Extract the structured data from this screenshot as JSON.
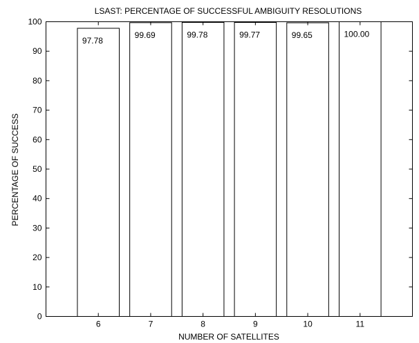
{
  "chart_data": {
    "type": "bar",
    "title": "LSAST: PERCENTAGE OF SUCCESSFUL AMBIGUITY RESOLUTIONS",
    "xlabel": "NUMBER OF SATELLITES",
    "ylabel": "PERCENTAGE OF SUCCESS",
    "categories": [
      "6",
      "7",
      "8",
      "9",
      "10",
      "11"
    ],
    "values": [
      97.78,
      99.69,
      99.78,
      99.77,
      99.65,
      100.0
    ],
    "data_labels": [
      "97.78",
      "99.69",
      "99.78",
      "99.77",
      "99.65",
      "100.00"
    ],
    "xlim": [
      5,
      12
    ],
    "ylim": [
      0,
      100
    ],
    "yticks": [
      0,
      10,
      20,
      30,
      40,
      50,
      60,
      70,
      80,
      90,
      100
    ],
    "grid": false,
    "legend": "none",
    "bar_fill": "#ffffff",
    "bar_edge": "#000000"
  }
}
